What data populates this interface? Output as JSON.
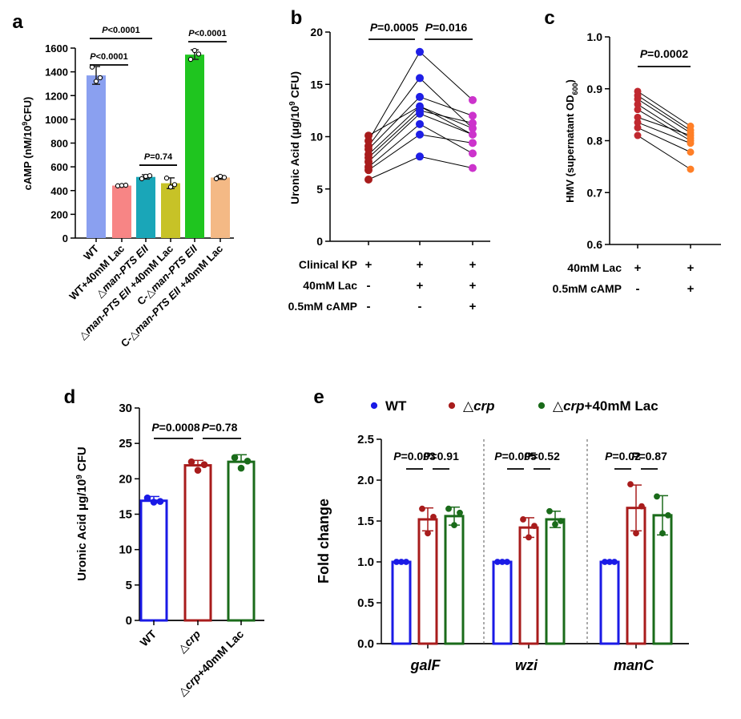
{
  "figure": {
    "panel_letters": [
      "a",
      "b",
      "c",
      "d",
      "e"
    ]
  },
  "chart_data": [
    {
      "id": "a",
      "type": "bar",
      "ylabel_parts": [
        "cAMP (nM/10",
        "9",
        "CFU)"
      ],
      "ylim": [
        0,
        1600
      ],
      "yticks": [
        0,
        200,
        400,
        600,
        800,
        1000,
        1200,
        1400,
        1600
      ],
      "categories": [
        {
          "pre": "",
          "ital": "",
          "post": "WT"
        },
        {
          "pre": "",
          "ital": "",
          "post": "WT+40mM Lac"
        },
        {
          "pre": "△",
          "ital": "man-PTS EII",
          "post": ""
        },
        {
          "pre": "△",
          "ital": "man-PTS EII",
          "post": " +40mM Lac"
        },
        {
          "pre": "C-△",
          "ital": "man-PTS EII",
          "post": ""
        },
        {
          "pre": "C-△",
          "ital": "man-PTS EII",
          "post": " +40mM Lac"
        }
      ],
      "values": [
        1370,
        442,
        515,
        462,
        1545,
        510
      ],
      "errors": [
        75,
        5,
        18,
        45,
        40,
        15
      ],
      "points": [
        [
          1440,
          1320,
          1350
        ],
        [
          440,
          443,
          445
        ],
        [
          500,
          520,
          525
        ],
        [
          505,
          430,
          450
        ],
        [
          1505,
          1580,
          1550
        ],
        [
          500,
          520,
          510
        ]
      ],
      "colors": [
        "#8aa0f0",
        "#f78585",
        "#1aa6b8",
        "#c7c227",
        "#1fc51f",
        "#f4b985"
      ],
      "comparisons": [
        {
          "label": "P<0.0001",
          "from": 0,
          "to": 1,
          "level": 1
        },
        {
          "label": "P<0.0001",
          "from": 0,
          "to": 2,
          "level": 2
        },
        {
          "label": "P=0.74",
          "from": 2,
          "to": 3,
          "level": 0
        },
        {
          "label": "P<0.0001",
          "from": 4,
          "to": 5,
          "level": 0
        }
      ]
    },
    {
      "id": "b",
      "type": "scatter",
      "ylabel_parts": [
        "Uronic Acid (μg/10",
        "9",
        " CFU)"
      ],
      "ylim": [
        0,
        20
      ],
      "yticks": [
        0,
        5,
        10,
        15,
        20
      ],
      "groups": [
        {
          "color": "#a81c1c",
          "values": [
            5.9,
            6.8,
            7.1,
            7.6,
            8.0,
            8.3,
            8.8,
            9.1,
            9.6,
            10.1
          ]
        },
        {
          "color": "#1f1fe6",
          "values": [
            8.1,
            10.2,
            11.2,
            12.2,
            12.5,
            12.9,
            13.8,
            15.6,
            18.1
          ]
        },
        {
          "color": "#cc33cc",
          "values": [
            7.0,
            8.4,
            9.4,
            10.2,
            10.8,
            11.3,
            12.0,
            13.5
          ]
        }
      ],
      "pairs": [
        [
          5.9,
          8.1,
          7.0
        ],
        [
          6.8,
          10.2,
          9.4
        ],
        [
          7.1,
          11.2,
          8.4
        ],
        [
          7.6,
          12.2,
          10.2
        ],
        [
          8.0,
          12.5,
          11.3
        ],
        [
          8.3,
          12.9,
          10.8
        ],
        [
          8.8,
          13.8,
          12.0
        ],
        [
          9.1,
          15.6,
          10.8
        ],
        [
          9.6,
          18.1,
          13.5
        ],
        [
          10.1,
          12.9,
          10.2
        ]
      ],
      "comparisons": [
        {
          "label": "P=0.0005",
          "from": 0,
          "to": 1
        },
        {
          "label": "P=0.016",
          "from": 1,
          "to": 2
        }
      ],
      "table": [
        {
          "label": "Clinical KP",
          "cells": [
            "+",
            "+",
            "+"
          ]
        },
        {
          "label": "40mM Lac",
          "cells": [
            "-",
            "+",
            "+"
          ]
        },
        {
          "label": "0.5mM cAMP",
          "cells": [
            "-",
            "-",
            "+"
          ]
        }
      ]
    },
    {
      "id": "c",
      "type": "scatter",
      "ylabel_parts": [
        "HMV (supernatant OD",
        "600",
        ")"
      ],
      "ylim": [
        0.6,
        1.0
      ],
      "yticks": [
        0.6,
        0.7,
        0.8,
        0.9,
        1.0
      ],
      "groups": [
        {
          "color": "#c0282f",
          "values": [
            0.81,
            0.825,
            0.835,
            0.845,
            0.86,
            0.87,
            0.88,
            0.887,
            0.895
          ]
        },
        {
          "color": "#ff7f27",
          "values": [
            0.745,
            0.778,
            0.795,
            0.8,
            0.805,
            0.81,
            0.815,
            0.82,
            0.828
          ]
        }
      ],
      "pairs": [
        [
          0.895,
          0.828
        ],
        [
          0.887,
          0.82
        ],
        [
          0.88,
          0.815
        ],
        [
          0.87,
          0.805
        ],
        [
          0.86,
          0.8
        ],
        [
          0.845,
          0.81
        ],
        [
          0.835,
          0.795
        ],
        [
          0.825,
          0.778
        ],
        [
          0.81,
          0.745
        ]
      ],
      "comparisons": [
        {
          "label": "P=0.0002",
          "from": 0,
          "to": 1
        }
      ],
      "table": [
        {
          "label": "40mM Lac",
          "cells": [
            "+",
            "+"
          ]
        },
        {
          "label": "0.5mM cAMP",
          "cells": [
            "-",
            "+"
          ]
        }
      ]
    },
    {
      "id": "d",
      "type": "bar",
      "ylabel_parts": [
        "Uronic Acid μg/10",
        "9",
        " CFU"
      ],
      "ylim": [
        0,
        30
      ],
      "yticks": [
        0,
        5,
        10,
        15,
        20,
        25,
        30
      ],
      "categories": [
        {
          "pre": "",
          "ital": "",
          "post": "WT"
        },
        {
          "pre": "△",
          "ital": "crp",
          "post": ""
        },
        {
          "pre": "△",
          "ital": "crp",
          "post": "+40mM Lac"
        }
      ],
      "values": [
        16.9,
        21.9,
        22.4
      ],
      "errors": [
        0.6,
        0.7,
        1.0
      ],
      "points": [
        [
          17.3,
          16.7,
          16.8
        ],
        [
          22.4,
          21.2,
          22.0
        ],
        [
          23.0,
          21.5,
          22.5
        ]
      ],
      "colors": [
        "#1a1ae6",
        "#a81c1c",
        "#1a6b1a"
      ],
      "comparisons": [
        {
          "label": "P=0.0008",
          "from": 0,
          "to": 1
        },
        {
          "label": "P=0.78",
          "from": 1,
          "to": 2
        }
      ]
    },
    {
      "id": "e",
      "type": "bar",
      "ylabel": "Fold change",
      "ylim": [
        0,
        2.5
      ],
      "yticks": [
        0.0,
        0.5,
        1.0,
        1.5,
        2.0,
        2.5
      ],
      "categories": [
        "galF",
        "wzi",
        "manC"
      ],
      "legend": [
        {
          "pre": "",
          "ital": "",
          "post": "WT",
          "color": "#1a1ae6"
        },
        {
          "pre": "△",
          "ital": "crp",
          "post": "",
          "color": "#a81c1c"
        },
        {
          "pre": "△",
          "ital": "crp",
          "post": "+40mM Lac",
          "color": "#1a6b1a"
        }
      ],
      "series": [
        {
          "name": "WT",
          "color": "#1a1ae6",
          "values": [
            1.0,
            1.0,
            1.0
          ],
          "errors": [
            0,
            0,
            0
          ],
          "points": [
            [
              1.0,
              1.0,
              1.0
            ],
            [
              1.0,
              1.0,
              1.0
            ],
            [
              1.0,
              1.0,
              1.0
            ]
          ]
        },
        {
          "name": "△crp",
          "color": "#a81c1c",
          "values": [
            1.52,
            1.42,
            1.66
          ],
          "errors": [
            0.14,
            0.12,
            0.28
          ],
          "points": [
            [
              1.65,
              1.35,
              1.55
            ],
            [
              1.52,
              1.3,
              1.44
            ],
            [
              1.95,
              1.35,
              1.68
            ]
          ]
        },
        {
          "name": "△crp+40mM Lac",
          "color": "#1a6b1a",
          "values": [
            1.56,
            1.52,
            1.57
          ],
          "errors": [
            0.11,
            0.1,
            0.24
          ],
          "points": [
            [
              1.65,
              1.45,
              1.6
            ],
            [
              1.62,
              1.46,
              1.5
            ],
            [
              1.8,
              1.35,
              1.57
            ]
          ]
        }
      ],
      "comparisons": [
        {
          "group": 0,
          "label": "P=0.003",
          "from": 0,
          "to": 1
        },
        {
          "group": 0,
          "label": "P=0.91",
          "from": 1,
          "to": 2
        },
        {
          "group": 1,
          "label": "P=0.005",
          "from": 0,
          "to": 1
        },
        {
          "group": 1,
          "label": "P=0.52",
          "from": 1,
          "to": 2
        },
        {
          "group": 2,
          "label": "P=0.02",
          "from": 0,
          "to": 1
        },
        {
          "group": 2,
          "label": "P=0.87",
          "from": 1,
          "to": 2
        }
      ]
    }
  ]
}
